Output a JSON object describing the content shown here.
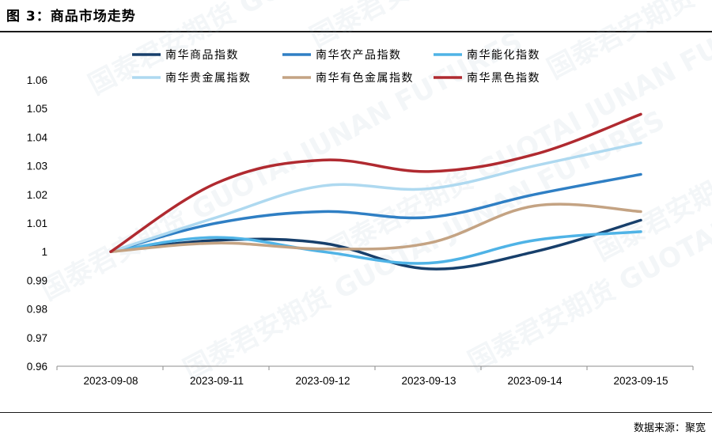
{
  "figure_title": "图 3：商品市场走势",
  "source_note": "数据来源：聚宽",
  "watermark": "国泰君安期货 GUOTAI JUNAN FUTURES",
  "chart_data": {
    "type": "line",
    "title": "",
    "xlabel": "",
    "ylabel": "",
    "categories": [
      "2023-09-08",
      "2023-09-11",
      "2023-09-12",
      "2023-09-13",
      "2023-09-14",
      "2023-09-15"
    ],
    "yticks": [
      "0.96",
      "0.97",
      "0.98",
      "0.99",
      "1",
      "1.01",
      "1.02",
      "1.03",
      "1.04",
      "1.05",
      "1.06"
    ],
    "ylim": [
      0.96,
      1.06
    ],
    "grid": false,
    "smooth": true,
    "legend_position": "top",
    "series": [
      {
        "name": "南华商品指数",
        "color": "#173f6b",
        "values": [
          1.0,
          1.004,
          1.003,
          0.994,
          1.0,
          1.011
        ]
      },
      {
        "name": "南华农产品指数",
        "color": "#2f7fc4",
        "values": [
          1.0,
          1.01,
          1.014,
          1.012,
          1.02,
          1.027
        ]
      },
      {
        "name": "南华能化指数",
        "color": "#4fb3e6",
        "values": [
          1.0,
          1.005,
          1.0,
          0.996,
          1.004,
          1.007
        ]
      },
      {
        "name": "南华贵金属指数",
        "color": "#aed9f0",
        "values": [
          1.0,
          1.012,
          1.023,
          1.022,
          1.03,
          1.038
        ]
      },
      {
        "name": "南华有色金属指数",
        "color": "#c4a383",
        "values": [
          1.0,
          1.003,
          1.001,
          1.003,
          1.016,
          1.014
        ]
      },
      {
        "name": "南华黑色指数",
        "color": "#b02a30",
        "values": [
          1.0,
          1.024,
          1.032,
          1.028,
          1.034,
          1.048
        ]
      }
    ]
  }
}
